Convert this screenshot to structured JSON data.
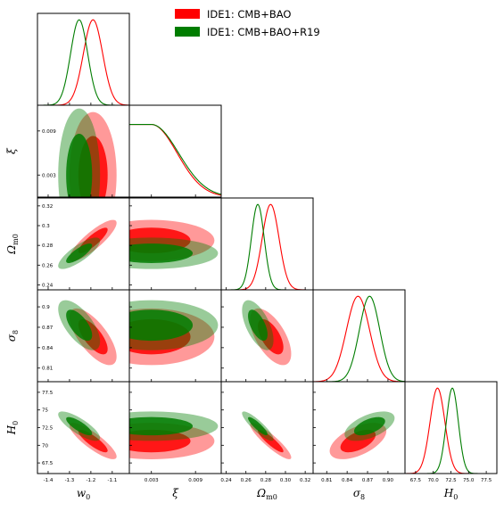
{
  "chart_data": {
    "type": "corner",
    "colors": {
      "red": "#ff0000",
      "green": "#007d00",
      "red_dark": "#ff0000",
      "green_dark": "#007d00"
    },
    "legend": {
      "placement": "top-right",
      "entries": [
        {
          "label": "IDE1: CMB+BAO",
          "color": "#ff0000"
        },
        {
          "label": "IDE1: CMB+BAO+R19",
          "color": "#007d00"
        }
      ]
    },
    "params": [
      {
        "key": "w0",
        "label_base": "w",
        "label_sub": "0",
        "range": [
          -1.45,
          -1.02
        ],
        "ticks": [
          -1.4,
          -1.3,
          -1.2,
          -1.1
        ],
        "tick_labels": [
          "-1.4",
          "-1.3",
          "-1.2",
          "-1.1"
        ]
      },
      {
        "key": "xi",
        "label_base": "ξ",
        "label_sub": "",
        "range": [
          0.0,
          0.0125
        ],
        "ticks": [
          0.003,
          0.009
        ],
        "tick_labels": [
          "0.003",
          "0.009"
        ]
      },
      {
        "key": "om",
        "label_base": "Ω",
        "label_sub": "m0",
        "range": [
          0.235,
          0.328
        ],
        "ticks": [
          0.24,
          0.26,
          0.28,
          0.3,
          0.32
        ],
        "tick_labels": [
          "0.24",
          "0.26",
          "0.28",
          "0.30",
          "0.32"
        ]
      },
      {
        "key": "s8",
        "label_base": "σ",
        "label_sub": "8",
        "range": [
          0.79,
          0.925
        ],
        "ticks": [
          0.81,
          0.84,
          0.87,
          0.9
        ],
        "tick_labels": [
          "0.81",
          "0.84",
          "0.87",
          "0.90"
        ]
      },
      {
        "key": "h0",
        "label_base": "H",
        "label_sub": "0",
        "range": [
          66.0,
          79.0
        ],
        "ticks": [
          67.5,
          70.0,
          72.5,
          75.0,
          77.5
        ],
        "tick_labels": [
          "67.5",
          "70.0",
          "72.5",
          "75.0",
          "77.5"
        ]
      }
    ],
    "row_ticks": {
      "xi": {
        "ticks": [
          0.003,
          0.009
        ],
        "tick_labels": [
          "0.003",
          "0.009"
        ]
      },
      "om": {
        "ticks": [
          0.24,
          0.26,
          0.28,
          0.3,
          0.32
        ],
        "tick_labels": [
          "0.24",
          "0.26",
          "0.28",
          "0.3",
          "0.32"
        ]
      },
      "s8": {
        "ticks": [
          0.81,
          0.84,
          0.87,
          0.9
        ],
        "tick_labels": [
          "0.81",
          "0.84",
          "0.87",
          "0.9"
        ]
      },
      "h0": {
        "ticks": [
          67.5,
          70.0,
          72.5,
          75.0,
          77.5
        ],
        "tick_labels": [
          "67.5",
          "70",
          "72.5",
          "75",
          "77.5"
        ]
      }
    },
    "series": [
      {
        "name": "IDE1: CMB+BAO",
        "color": "#ff0000",
        "mean": {
          "w0": -1.19,
          "xi": 0.003,
          "om": 0.285,
          "s8": 0.856,
          "h0": 70.6
        },
        "sd": {
          "w0": 0.045,
          "xi": 0.0035,
          "om": 0.0085,
          "s8": 0.017,
          "h0": 1.05
        },
        "onesided_xi": true,
        "corr": {
          "w0|om": 0.85,
          "w0|s8": -0.7,
          "w0|h0": -0.85,
          "xi|om": 0.0,
          "xi|s8": 0.0,
          "xi|h0": 0.0,
          "w0|xi": 0.0,
          "om|s8": -0.6,
          "om|h0": -0.9,
          "s8|h0": 0.55
        }
      },
      {
        "name": "IDE1: CMB+BAO+R19",
        "color": "#007d00",
        "mean": {
          "w0": -1.255,
          "xi": 0.003,
          "om": 0.272,
          "s8": 0.873,
          "h0": 72.7
        },
        "sd": {
          "w0": 0.04,
          "xi": 0.0037,
          "om": 0.0065,
          "s8": 0.015,
          "h0": 0.85
        },
        "onesided_xi": true,
        "corr": {
          "w0|om": 0.8,
          "w0|s8": -0.65,
          "w0|h0": -0.8,
          "xi|om": 0.0,
          "xi|s8": 0.0,
          "xi|h0": 0.0,
          "w0|xi": 0.0,
          "om|s8": -0.6,
          "om|h0": -0.88,
          "s8|h0": 0.55
        }
      }
    ],
    "grid": false
  }
}
